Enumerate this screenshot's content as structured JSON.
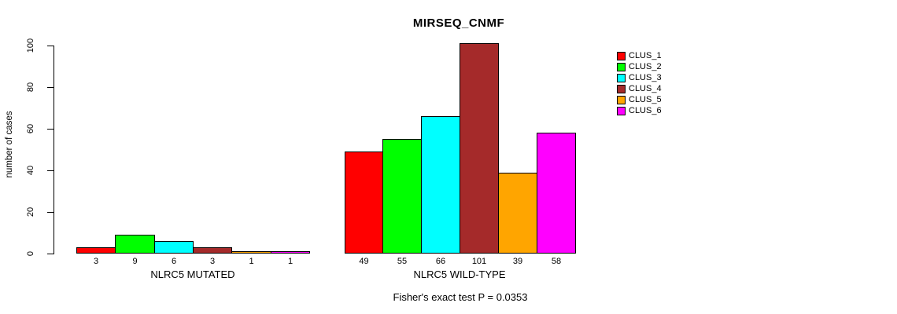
{
  "title": "MIRSEQ_CNMF",
  "ylabel": "number of cases",
  "footer": "Fisher's exact test P = 0.0353",
  "legend": {
    "items": [
      {
        "label": "CLUS_1",
        "color": "#FF0000"
      },
      {
        "label": "CLUS_2",
        "color": "#00FF00"
      },
      {
        "label": "CLUS_3",
        "color": "#00FFFF"
      },
      {
        "label": "CLUS_4",
        "color": "#A52A2A"
      },
      {
        "label": "CLUS_5",
        "color": "#FFA500"
      },
      {
        "label": "CLUS_6",
        "color": "#FF00FF"
      }
    ]
  },
  "chart_data": {
    "type": "bar",
    "title": "MIRSEQ_CNMF",
    "ylabel": "number of cases",
    "xlabel": "",
    "ylim": [
      0,
      100
    ],
    "yticks": [
      0,
      20,
      40,
      60,
      80,
      100
    ],
    "grid": false,
    "legend_position": "right",
    "series_names": [
      "CLUS_1",
      "CLUS_2",
      "CLUS_3",
      "CLUS_4",
      "CLUS_5",
      "CLUS_6"
    ],
    "series_colors": [
      "#FF0000",
      "#00FF00",
      "#00FFFF",
      "#A52A2A",
      "#FFA500",
      "#FF00FF"
    ],
    "groups": [
      {
        "label": "NLRC5 MUTATED",
        "values": [
          3,
          9,
          6,
          3,
          1,
          1
        ]
      },
      {
        "label": "NLRC5 WILD-TYPE",
        "values": [
          49,
          55,
          66,
          101,
          39,
          58
        ]
      }
    ],
    "annotation": "Fisher's exact test P = 0.0353"
  }
}
